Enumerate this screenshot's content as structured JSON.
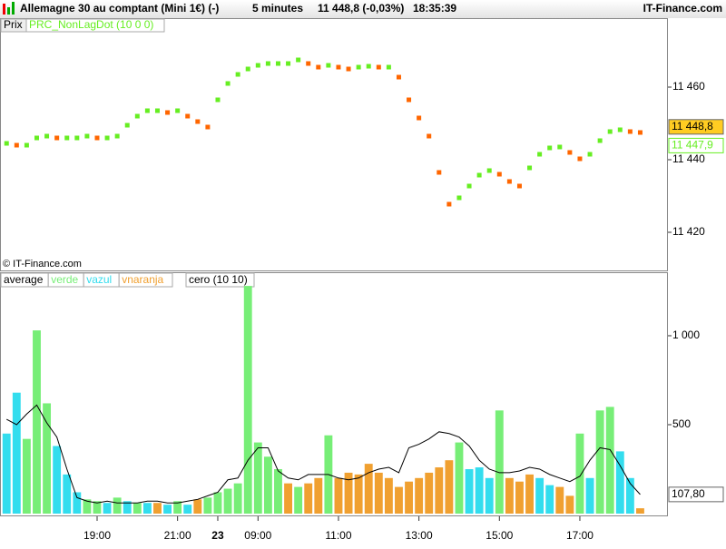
{
  "header": {
    "title": "Allemagne 30 au comptant (Mini 1€) (-)",
    "interval": "5 minutes",
    "quote": "11 448,8 (-0,03%)",
    "time": "18:35:39",
    "brand": "IT-Finance.com"
  },
  "chart_data": [
    {
      "type": "dots",
      "panel_label": "Prix",
      "indicator_label": "PRC_NonLagDot (10 0 0)",
      "copyright": "© IT-Finance.com",
      "categories": [
        null,
        null,
        null,
        null,
        null,
        null,
        null,
        null,
        null,
        "19:00",
        null,
        null,
        null,
        null,
        null,
        null,
        null,
        "21:00",
        null,
        null,
        null,
        "23",
        null,
        null,
        null,
        "09:00",
        null,
        null,
        null,
        null,
        null,
        null,
        null,
        "11:00",
        null,
        null,
        null,
        null,
        null,
        null,
        null,
        "13:00",
        null,
        null,
        null,
        null,
        null,
        null,
        null,
        "15:00",
        null,
        null,
        null,
        null,
        null,
        null,
        null,
        "17:00",
        null,
        null,
        null,
        null,
        null,
        null
      ],
      "up_color": "#66ee22",
      "down_color": "#ff6600",
      "values": [
        11444.5,
        11444,
        11444,
        11446,
        11446.5,
        11446,
        11446,
        11446,
        11446.5,
        11446,
        11446,
        11446.5,
        11449.5,
        11452,
        11453.5,
        11453.5,
        11453,
        11453.5,
        11452,
        11450.5,
        11449,
        11456.5,
        11461,
        11463.5,
        11465,
        11466,
        11466.5,
        11466.5,
        11466.5,
        11467.5,
        11466.5,
        11465.5,
        11466,
        11465.5,
        11465,
        11465.5,
        11465.75,
        11465.5,
        11465.5,
        11462.75,
        11456.5,
        11451.5,
        11446.5,
        11436.5,
        11427.75,
        11429.5,
        11432.75,
        11435.75,
        11437,
        11436,
        11434,
        11432.75,
        11437.75,
        11441.5,
        11443.25,
        11443.5,
        11442,
        11440.25,
        11441.5,
        11445.25,
        11447.75,
        11448.25,
        11447.75,
        11447.5
      ],
      "ylim": [
        11409.5,
        11479
      ],
      "yticks": [
        {
          "value": 11420,
          "label": "11 420"
        },
        {
          "value": 11440,
          "label": "11 440"
        },
        {
          "value": 11460,
          "label": "11 460"
        }
      ],
      "last_price": {
        "value": 11448.8,
        "label": "11 448,8",
        "color": "#ffcc22"
      },
      "last_indicator": {
        "value": 11447.9,
        "label": "11 447,9",
        "color": "#66ee22"
      }
    },
    {
      "type": "volume",
      "indicator_label": "cero (10 10)",
      "series": [
        {
          "name": "average",
          "color": "#000000",
          "values": [
            530,
            500,
            560,
            610,
            510,
            430,
            250,
            90,
            70,
            60,
            70,
            60,
            60,
            60,
            70,
            70,
            60,
            60,
            70,
            80,
            100,
            120,
            190,
            200,
            300,
            370,
            370,
            240,
            200,
            190,
            220,
            220,
            220,
            200,
            190,
            200,
            230,
            250,
            260,
            230,
            370,
            390,
            420,
            460,
            450,
            430,
            380,
            300,
            250,
            230,
            230,
            240,
            260,
            250,
            220,
            200,
            180,
            210,
            300,
            370,
            360,
            270,
            170,
            107.8
          ]
        },
        {
          "name": "verde",
          "color": "#77ee77",
          "values": [
            null,
            null,
            420,
            1030,
            620,
            null,
            null,
            null,
            80,
            70,
            null,
            90,
            null,
            60,
            null,
            null,
            null,
            70,
            null,
            null,
            90,
            120,
            140,
            170,
            1280,
            400,
            320,
            250,
            null,
            150,
            null,
            null,
            440,
            null,
            null,
            null,
            null,
            null,
            null,
            null,
            null,
            null,
            null,
            null,
            null,
            400,
            null,
            null,
            null,
            580,
            null,
            null,
            null,
            null,
            null,
            null,
            null,
            450,
            null,
            580,
            600,
            null,
            null,
            null
          ]
        },
        {
          "name": "vazul",
          "color": "#33ddee",
          "values": [
            450,
            680,
            null,
            null,
            null,
            380,
            220,
            120,
            null,
            null,
            60,
            null,
            70,
            null,
            60,
            null,
            50,
            null,
            50,
            null,
            null,
            null,
            null,
            null,
            null,
            null,
            null,
            null,
            null,
            null,
            null,
            null,
            null,
            null,
            null,
            null,
            null,
            null,
            null,
            null,
            null,
            null,
            null,
            null,
            null,
            null,
            250,
            260,
            200,
            null,
            null,
            null,
            null,
            200,
            160,
            null,
            null,
            null,
            200,
            null,
            null,
            350,
            200,
            null
          ]
        },
        {
          "name": "vnaranja",
          "color": "#f0a030",
          "values": [
            null,
            null,
            null,
            null,
            null,
            null,
            null,
            null,
            null,
            null,
            null,
            null,
            null,
            null,
            null,
            60,
            null,
            null,
            null,
            80,
            null,
            null,
            null,
            null,
            null,
            null,
            null,
            null,
            170,
            null,
            170,
            200,
            null,
            200,
            230,
            220,
            280,
            230,
            200,
            150,
            180,
            200,
            230,
            260,
            300,
            null,
            null,
            null,
            null,
            null,
            200,
            180,
            220,
            null,
            null,
            150,
            100,
            null,
            null,
            null,
            null,
            null,
            null,
            30
          ]
        }
      ],
      "ylim": [
        0,
        1357
      ],
      "yticks": [
        500,
        {
          "value": 1000,
          "label": "1 000"
        }
      ],
      "last_label": {
        "value": 107.8,
        "label": "107,80"
      }
    }
  ]
}
